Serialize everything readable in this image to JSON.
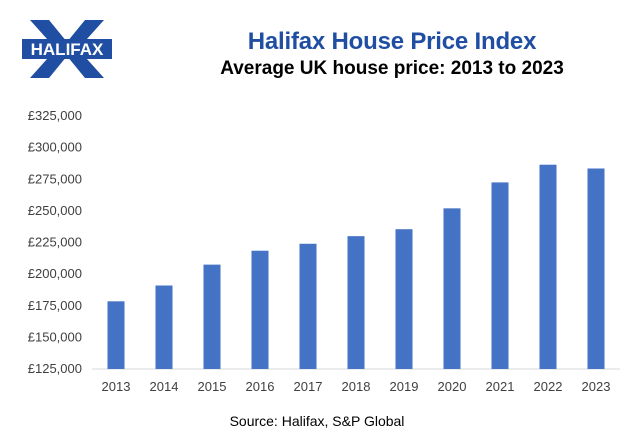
{
  "logo": {
    "text": "HALIFAX",
    "icon": "halifax-x-logo",
    "brand_color": "#1f4ea3"
  },
  "title": "Halifax House Price Index",
  "subtitle": "Average UK house price: 2013 to 2023",
  "source": "Source: Halifax, S&P Global",
  "colors": {
    "bar": "#4472c4",
    "title": "#1f4ea3"
  },
  "chart_data": {
    "type": "bar",
    "title": "Halifax House Price Index",
    "subtitle": "Average UK house price: 2013 to 2023",
    "categories": [
      "2013",
      "2014",
      "2015",
      "2016",
      "2017",
      "2018",
      "2019",
      "2020",
      "2021",
      "2022",
      "2023"
    ],
    "values": [
      178500,
      191000,
      207500,
      218500,
      224000,
      230000,
      235500,
      252000,
      272500,
      286500,
      283500
    ],
    "ylim": [
      125000,
      325000
    ],
    "yticks": [
      125000,
      150000,
      175000,
      200000,
      225000,
      250000,
      275000,
      300000,
      325000
    ],
    "ytick_labels": [
      "£125,000",
      "£150,000",
      "£175,000",
      "£200,000",
      "£225,000",
      "£250,000",
      "£275,000",
      "£300,000",
      "£325,000"
    ],
    "grid": false,
    "legend": "none",
    "xlabel": "",
    "ylabel": ""
  }
}
